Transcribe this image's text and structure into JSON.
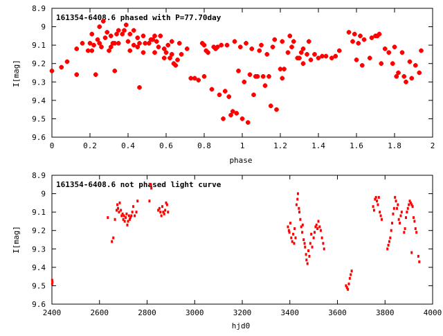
{
  "chart_data": [
    {
      "type": "scatter",
      "title": "161354-6408.6 phased with P=77.70day",
      "xlabel": "phase",
      "ylabel": "I[mag]",
      "xlim": [
        0,
        2
      ],
      "ylim": [
        9.6,
        8.9
      ],
      "y_inverted": true,
      "grid": false,
      "x_ticks": [
        "0",
        "0.2",
        "0.4",
        "0.6",
        "0.8",
        "1",
        "1.2",
        "1.4",
        "1.6",
        "1.8",
        "2"
      ],
      "y_ticks": [
        "8.9",
        "9",
        "9.1",
        "9.2",
        "9.3",
        "9.4",
        "9.5",
        "9.6"
      ],
      "marker_color": "#ff0000",
      "points": [
        [
          0.0,
          9.24
        ],
        [
          0.05,
          9.22
        ],
        [
          0.08,
          9.19
        ],
        [
          0.13,
          9.12
        ],
        [
          0.13,
          9.26
        ],
        [
          0.16,
          9.09
        ],
        [
          0.19,
          9.13
        ],
        [
          0.2,
          9.09
        ],
        [
          0.21,
          9.13
        ],
        [
          0.21,
          9.04
        ],
        [
          0.22,
          9.1
        ],
        [
          0.23,
          9.26
        ],
        [
          0.24,
          9.07
        ],
        [
          0.25,
          9.09
        ],
        [
          0.26,
          9.11
        ],
        [
          0.25,
          9.0
        ],
        [
          0.27,
          8.97
        ],
        [
          0.28,
          9.06
        ],
        [
          0.29,
          9.03
        ],
        [
          0.3,
          9.13
        ],
        [
          0.31,
          9.05
        ],
        [
          0.31,
          9.11
        ],
        [
          0.32,
          9.09
        ],
        [
          0.33,
          9.09
        ],
        [
          0.33,
          9.24
        ],
        [
          0.34,
          9.04
        ],
        [
          0.35,
          9.02
        ],
        [
          0.35,
          9.09
        ],
        [
          0.37,
          9.04
        ],
        [
          0.38,
          9.02
        ],
        [
          0.39,
          8.99
        ],
        [
          0.4,
          9.08
        ],
        [
          0.41,
          9.04
        ],
        [
          0.41,
          9.13
        ],
        [
          0.43,
          9.1
        ],
        [
          0.43,
          9.02
        ],
        [
          0.45,
          9.06
        ],
        [
          0.45,
          9.11
        ],
        [
          0.46,
          9.33
        ],
        [
          0.46,
          9.09
        ],
        [
          0.48,
          9.05
        ],
        [
          0.48,
          9.14
        ],
        [
          0.49,
          9.09
        ],
        [
          0.51,
          9.09
        ],
        [
          0.52,
          9.07
        ],
        [
          0.53,
          9.07
        ],
        [
          0.54,
          9.05
        ],
        [
          0.54,
          9.14
        ],
        [
          0.55,
          9.08
        ],
        [
          0.56,
          9.11
        ],
        [
          0.57,
          9.05
        ],
        [
          0.59,
          9.12
        ],
        [
          0.59,
          9.17
        ],
        [
          0.6,
          9.14
        ],
        [
          0.61,
          9.1
        ],
        [
          0.62,
          9.17
        ],
        [
          0.63,
          9.15
        ],
        [
          0.63,
          9.08
        ],
        [
          0.64,
          9.2
        ],
        [
          0.65,
          9.21
        ],
        [
          0.66,
          9.18
        ],
        [
          0.67,
          9.09
        ],
        [
          0.68,
          9.15
        ],
        [
          0.71,
          9.12
        ],
        [
          0.73,
          9.28
        ],
        [
          0.75,
          9.28
        ],
        [
          0.77,
          9.29
        ],
        [
          0.79,
          9.09
        ],
        [
          0.8,
          9.1
        ],
        [
          0.8,
          9.27
        ],
        [
          0.81,
          9.13
        ],
        [
          0.82,
          9.14
        ],
        [
          0.84,
          9.34
        ],
        [
          0.85,
          9.11
        ],
        [
          0.86,
          9.12
        ],
        [
          0.87,
          9.11
        ],
        [
          0.88,
          9.37
        ],
        [
          0.89,
          9.1
        ],
        [
          0.9,
          9.5
        ],
        [
          0.91,
          9.35
        ],
        [
          0.92,
          9.1
        ],
        [
          0.93,
          9.38
        ],
        [
          0.94,
          9.48
        ],
        [
          0.95,
          9.46
        ],
        [
          0.96,
          9.08
        ],
        [
          0.97,
          9.47
        ],
        [
          0.98,
          9.24
        ],
        [
          0.99,
          9.11
        ],
        [
          1.0,
          9.5
        ],
        [
          1.01,
          9.3
        ],
        [
          1.02,
          9.09
        ],
        [
          1.03,
          9.52
        ],
        [
          1.04,
          9.26
        ],
        [
          1.05,
          9.12
        ],
        [
          1.06,
          9.37
        ],
        [
          1.07,
          9.27
        ],
        [
          1.08,
          9.27
        ],
        [
          1.09,
          9.13
        ],
        [
          1.1,
          9.1
        ],
        [
          1.11,
          9.27
        ],
        [
          1.12,
          9.32
        ],
        [
          1.13,
          9.15
        ],
        [
          1.14,
          9.27
        ],
        [
          1.15,
          9.43
        ],
        [
          1.16,
          9.11
        ],
        [
          1.17,
          9.07
        ],
        [
          1.18,
          9.45
        ],
        [
          1.2,
          9.23
        ],
        [
          1.21,
          9.28
        ],
        [
          1.21,
          9.08
        ],
        [
          1.22,
          9.23
        ],
        [
          1.24,
          9.14
        ],
        [
          1.25,
          9.05
        ],
        [
          1.26,
          9.11
        ],
        [
          1.27,
          9.08
        ],
        [
          1.29,
          9.17
        ],
        [
          1.3,
          9.17
        ],
        [
          1.31,
          9.14
        ],
        [
          1.32,
          9.2
        ],
        [
          1.32,
          9.12
        ],
        [
          1.34,
          9.15
        ],
        [
          1.35,
          9.08
        ],
        [
          1.36,
          9.18
        ],
        [
          1.38,
          9.15
        ],
        [
          1.4,
          9.17
        ],
        [
          1.42,
          9.16
        ],
        [
          1.44,
          9.16
        ],
        [
          1.47,
          9.17
        ],
        [
          1.49,
          9.16
        ],
        [
          1.51,
          9.13
        ],
        [
          1.56,
          9.03
        ],
        [
          1.58,
          9.08
        ],
        [
          1.59,
          9.04
        ],
        [
          1.6,
          9.18
        ],
        [
          1.61,
          9.09
        ],
        [
          1.62,
          9.05
        ],
        [
          1.63,
          9.21
        ],
        [
          1.64,
          9.07
        ],
        [
          1.67,
          9.17
        ],
        [
          1.68,
          9.06
        ],
        [
          1.7,
          9.05
        ],
        [
          1.71,
          9.05
        ],
        [
          1.72,
          9.04
        ],
        [
          1.73,
          9.2
        ],
        [
          1.75,
          9.12
        ],
        [
          1.77,
          9.14
        ],
        [
          1.79,
          9.2
        ],
        [
          1.8,
          9.11
        ],
        [
          1.81,
          9.27
        ],
        [
          1.82,
          9.25
        ],
        [
          1.84,
          9.14
        ],
        [
          1.85,
          9.27
        ],
        [
          1.86,
          9.3
        ],
        [
          1.88,
          9.19
        ],
        [
          1.89,
          9.28
        ],
        [
          1.91,
          9.21
        ],
        [
          1.93,
          9.25
        ],
        [
          1.94,
          9.13
        ]
      ]
    },
    {
      "type": "scatter",
      "title": "161354-6408.6 not phased light curve",
      "xlabel": "hjd0",
      "ylabel": "I[mag]",
      "xlim": [
        2400,
        4000
      ],
      "ylim": [
        9.6,
        8.9
      ],
      "y_inverted": true,
      "grid": false,
      "x_ticks": [
        "2400",
        "2600",
        "2800",
        "3000",
        "3200",
        "3400",
        "3600",
        "3800",
        "4000"
      ],
      "y_ticks": [
        "8.9",
        "9",
        "9.1",
        "9.2",
        "9.3",
        "9.4",
        "9.5",
        "9.6"
      ],
      "marker_color": "#ff0000",
      "points": [
        [
          2401,
          9.47
        ],
        [
          2401,
          9.49
        ],
        [
          2402,
          9.48
        ],
        [
          2635,
          9.13
        ],
        [
          2652,
          9.26
        ],
        [
          2658,
          9.24
        ],
        [
          2665,
          9.14
        ],
        [
          2672,
          9.09
        ],
        [
          2675,
          9.06
        ],
        [
          2678,
          9.08
        ],
        [
          2682,
          9.1
        ],
        [
          2685,
          9.05
        ],
        [
          2690,
          9.09
        ],
        [
          2693,
          9.12
        ],
        [
          2697,
          9.11
        ],
        [
          2700,
          9.14
        ],
        [
          2703,
          9.12
        ],
        [
          2706,
          9.15
        ],
        [
          2710,
          9.13
        ],
        [
          2714,
          9.11
        ],
        [
          2717,
          9.17
        ],
        [
          2720,
          9.15
        ],
        [
          2724,
          9.12
        ],
        [
          2727,
          9.14
        ],
        [
          2730,
          9.13
        ],
        [
          2734,
          9.12
        ],
        [
          2738,
          9.1
        ],
        [
          2742,
          9.07
        ],
        [
          2748,
          9.12
        ],
        [
          2755,
          9.1
        ],
        [
          2760,
          9.04
        ],
        [
          2810,
          9.04
        ],
        [
          2815,
          8.95
        ],
        [
          2818,
          8.97
        ],
        [
          2847,
          9.09
        ],
        [
          2852,
          9.08
        ],
        [
          2856,
          9.1
        ],
        [
          2860,
          9.12
        ],
        [
          2864,
          9.07
        ],
        [
          2868,
          9.1
        ],
        [
          2872,
          9.11
        ],
        [
          2876,
          9.09
        ],
        [
          2880,
          9.05
        ],
        [
          2884,
          9.06
        ],
        [
          2888,
          9.1
        ],
        [
          3392,
          9.18
        ],
        [
          3396,
          9.2
        ],
        [
          3398,
          9.21
        ],
        [
          3402,
          9.16
        ],
        [
          3406,
          9.24
        ],
        [
          3410,
          9.26
        ],
        [
          3414,
          9.22
        ],
        [
          3418,
          9.27
        ],
        [
          3420,
          9.19
        ],
        [
          3424,
          9.24
        ],
        [
          3428,
          9.06
        ],
        [
          3432,
          9.03
        ],
        [
          3434,
          9.0
        ],
        [
          3438,
          9.08
        ],
        [
          3440,
          9.1
        ],
        [
          3444,
          9.14
        ],
        [
          3448,
          9.18
        ],
        [
          3452,
          9.21
        ],
        [
          3454,
          9.17
        ],
        [
          3458,
          9.25
        ],
        [
          3462,
          9.27
        ],
        [
          3464,
          9.29
        ],
        [
          3468,
          9.33
        ],
        [
          3470,
          9.36
        ],
        [
          3474,
          9.38
        ],
        [
          3478,
          9.31
        ],
        [
          3482,
          9.34
        ],
        [
          3486,
          9.27
        ],
        [
          3490,
          9.22
        ],
        [
          3494,
          9.29
        ],
        [
          3500,
          9.24
        ],
        [
          3504,
          9.21
        ],
        [
          3508,
          9.18
        ],
        [
          3512,
          9.17
        ],
        [
          3516,
          9.19
        ],
        [
          3520,
          9.15
        ],
        [
          3525,
          9.18
        ],
        [
          3530,
          9.2
        ],
        [
          3535,
          9.24
        ],
        [
          3540,
          9.27
        ],
        [
          3544,
          9.3
        ],
        [
          3636,
          9.5
        ],
        [
          3640,
          9.51
        ],
        [
          3644,
          9.52
        ],
        [
          3648,
          9.49
        ],
        [
          3652,
          9.46
        ],
        [
          3656,
          9.44
        ],
        [
          3660,
          9.42
        ],
        [
          3750,
          9.07
        ],
        [
          3754,
          9.09
        ],
        [
          3758,
          9.03
        ],
        [
          3762,
          9.02
        ],
        [
          3766,
          9.04
        ],
        [
          3770,
          9.06
        ],
        [
          3774,
          9.02
        ],
        [
          3778,
          9.1
        ],
        [
          3782,
          9.12
        ],
        [
          3786,
          9.14
        ],
        [
          3810,
          9.3
        ],
        [
          3814,
          9.28
        ],
        [
          3818,
          9.26
        ],
        [
          3822,
          9.24
        ],
        [
          3826,
          9.2
        ],
        [
          3830,
          9.16
        ],
        [
          3834,
          9.11
        ],
        [
          3838,
          9.08
        ],
        [
          3842,
          9.02
        ],
        [
          3846,
          9.04
        ],
        [
          3850,
          9.08
        ],
        [
          3854,
          9.06
        ],
        [
          3858,
          9.14
        ],
        [
          3862,
          9.16
        ],
        [
          3866,
          9.12
        ],
        [
          3870,
          9.1
        ],
        [
          3880,
          9.21
        ],
        [
          3884,
          9.19
        ],
        [
          3888,
          9.13
        ],
        [
          3892,
          9.1
        ],
        [
          3896,
          9.08
        ],
        [
          3900,
          9.06
        ],
        [
          3904,
          9.04
        ],
        [
          3908,
          9.05
        ],
        [
          3912,
          9.06
        ],
        [
          3916,
          9.07
        ],
        [
          3920,
          9.13
        ],
        [
          3924,
          9.15
        ],
        [
          3928,
          9.19
        ],
        [
          3932,
          9.21
        ],
        [
          3912,
          9.32
        ],
        [
          3940,
          9.34
        ],
        [
          3944,
          9.37
        ]
      ]
    }
  ]
}
